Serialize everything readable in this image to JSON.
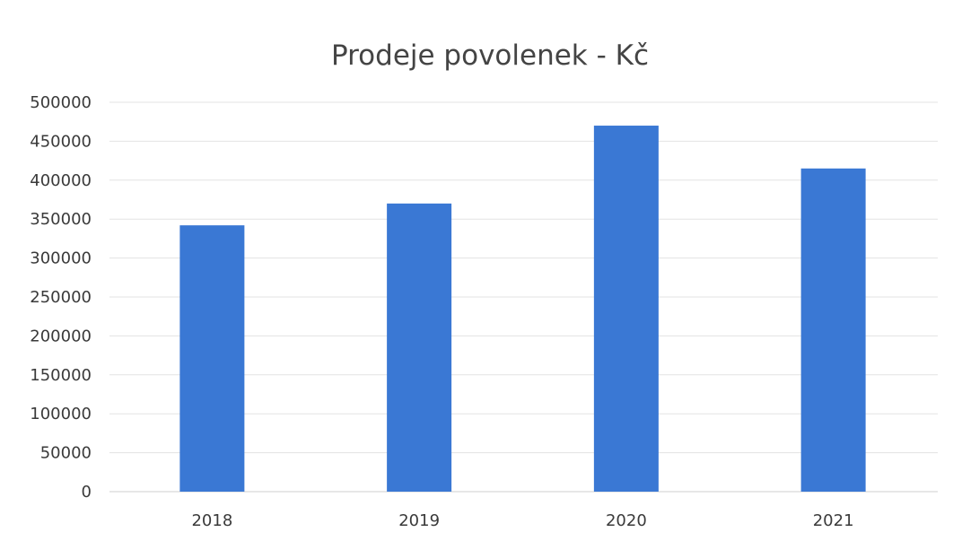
{
  "chart_data": {
    "type": "bar",
    "title": "Prodeje povolenek - Kč",
    "xlabel": "",
    "ylabel": "",
    "categories": [
      "2018",
      "2019",
      "2020",
      "2021"
    ],
    "series": [
      {
        "values": [
          342000,
          370000,
          470000,
          415000
        ]
      }
    ],
    "ylim": [
      0,
      500000
    ],
    "yticks": [
      0,
      50000,
      100000,
      150000,
      200000,
      250000,
      300000,
      350000,
      400000,
      450000,
      500000
    ],
    "ytick_labels": [
      "0",
      "50000",
      "100000",
      "150000",
      "200000",
      "250000",
      "300000",
      "350000",
      "400000",
      "450000",
      "500000"
    ],
    "grid": true,
    "legend": "none",
    "colors": {
      "bar": "#3a78d4",
      "grid": "#e3e3e3",
      "text": "#3a3a3a",
      "title": "#444444"
    }
  }
}
